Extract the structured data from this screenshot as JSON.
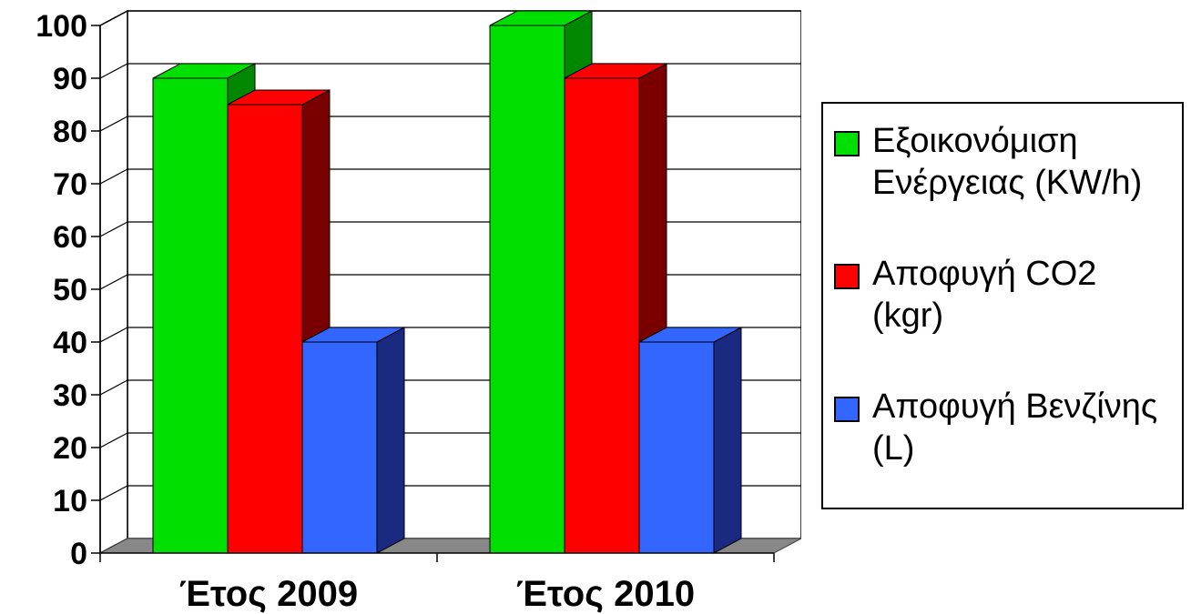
{
  "chart_data": {
    "type": "bar",
    "categories": [
      "Έτος 2009",
      "Έτος 2010"
    ],
    "series": [
      {
        "name": "Εξοικονόμιση Ενέργειας (KW/h)",
        "values": [
          90,
          100
        ],
        "color": "#00e000",
        "side_color": "#008800"
      },
      {
        "name": "Αποφυγή CO2 (kgr)",
        "values": [
          85,
          90
        ],
        "color": "#ff0000",
        "side_color": "#7a0000"
      },
      {
        "name": "Αποφυγή Βενζίνης (L)",
        "values": [
          40,
          40
        ],
        "color": "#3366ff",
        "side_color": "#1a2a80"
      }
    ],
    "yticks": [
      "0",
      "10",
      "20",
      "30",
      "40",
      "50",
      "60",
      "70",
      "80",
      "90",
      "100"
    ],
    "ylim": [
      0,
      100
    ],
    "grid": true,
    "legend_position": "right",
    "title": "",
    "xlabel": "",
    "ylabel": ""
  }
}
